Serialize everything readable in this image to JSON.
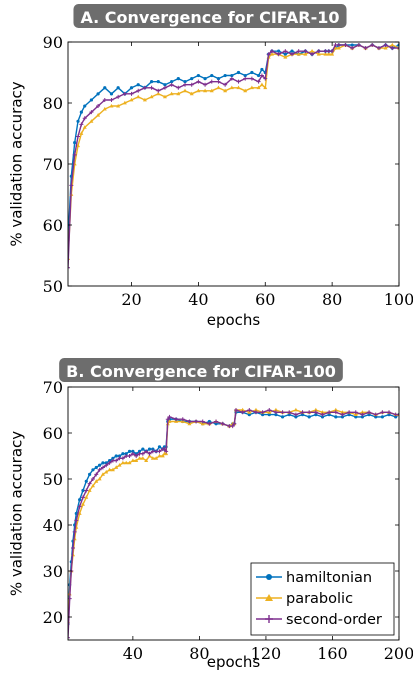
{
  "colors": {
    "hamiltonian": "#0072BD",
    "parabolic": "#EDB120",
    "second_order": "#7E2F8E",
    "title_bg": "#6d6d6d",
    "title_text": "#ffffff"
  },
  "chart_data": [
    {
      "type": "line",
      "title": "A. Convergence for CIFAR-10",
      "xlabel": "epochs",
      "ylabel": "% validation accuracy",
      "xlim": [
        1,
        100
      ],
      "ylim": [
        50,
        90
      ],
      "xticks": [
        20,
        40,
        60,
        80,
        100
      ],
      "yticks": [
        50,
        60,
        70,
        80,
        90
      ],
      "grid": false,
      "legend": "none",
      "series": [
        {
          "name": "hamiltonian",
          "color_key": "hamiltonian",
          "marker": "circle",
          "x": [
            1,
            2,
            3,
            4,
            5,
            6,
            8,
            10,
            12,
            14,
            16,
            18,
            20,
            22,
            24,
            26,
            28,
            30,
            32,
            34,
            36,
            38,
            40,
            42,
            44,
            46,
            48,
            50,
            52,
            54,
            56,
            58,
            59,
            60,
            61,
            62,
            64,
            66,
            68,
            70,
            72,
            74,
            76,
            78,
            79,
            80,
            81,
            82,
            84,
            86,
            88,
            90,
            92,
            94,
            96,
            98,
            100
          ],
          "y": [
            57.5,
            68,
            73.5,
            77,
            78.5,
            79.5,
            80.5,
            81.5,
            82.5,
            81.5,
            82.5,
            81.5,
            82.5,
            83,
            82.5,
            83.5,
            83.5,
            83,
            83.5,
            84,
            83.5,
            84,
            84.5,
            84,
            84.5,
            84,
            84.5,
            84.5,
            85,
            84.5,
            85,
            84.5,
            85.5,
            85,
            88,
            88.5,
            88.5,
            88,
            88.5,
            88,
            88.5,
            88,
            88.5,
            88.5,
            88.5,
            88.5,
            89,
            89.5,
            89.5,
            89.5,
            89.5,
            89,
            89.5,
            89,
            89.5,
            89,
            89.5
          ]
        },
        {
          "name": "parabolic",
          "color_key": "parabolic",
          "marker": "triangle",
          "x": [
            1,
            2,
            3,
            4,
            5,
            6,
            8,
            10,
            12,
            14,
            16,
            18,
            20,
            22,
            24,
            26,
            28,
            30,
            32,
            34,
            36,
            38,
            40,
            42,
            44,
            46,
            48,
            50,
            52,
            54,
            56,
            58,
            59,
            60,
            61,
            62,
            64,
            66,
            68,
            70,
            72,
            74,
            76,
            78,
            79,
            80,
            81,
            82,
            84,
            86,
            88,
            90,
            92,
            94,
            96,
            98,
            100
          ],
          "y": [
            54.5,
            65,
            70,
            73,
            75,
            76,
            77,
            78,
            79,
            79.5,
            79.5,
            80,
            80.5,
            81,
            80.5,
            81,
            81.5,
            81,
            81.5,
            81.5,
            82,
            81.5,
            82,
            82,
            82,
            82.5,
            82,
            82.5,
            82.5,
            82,
            82.5,
            82.5,
            83,
            82.5,
            87.5,
            88,
            88,
            87.5,
            88,
            88,
            88,
            88.5,
            88,
            88,
            88,
            88,
            89,
            89,
            89.5,
            89,
            89.5,
            89,
            89.5,
            89,
            89,
            89.5,
            89
          ]
        },
        {
          "name": "second-order",
          "color_key": "second_order",
          "marker": "plus",
          "x": [
            1,
            2,
            3,
            4,
            5,
            6,
            8,
            10,
            12,
            14,
            16,
            18,
            20,
            22,
            24,
            26,
            28,
            30,
            32,
            34,
            36,
            38,
            40,
            42,
            44,
            46,
            48,
            50,
            52,
            54,
            56,
            58,
            59,
            60,
            61,
            62,
            64,
            66,
            68,
            70,
            72,
            74,
            76,
            78,
            79,
            80,
            81,
            82,
            84,
            86,
            88,
            90,
            92,
            94,
            96,
            98,
            100
          ],
          "y": [
            53,
            66.5,
            71.5,
            74.5,
            76.5,
            77.5,
            78.5,
            79.5,
            80.5,
            80.5,
            81,
            81.5,
            81.5,
            82,
            82.5,
            82.5,
            82,
            82.5,
            83,
            82.5,
            83,
            83,
            83.5,
            83,
            83.5,
            83.5,
            83,
            84,
            83.5,
            84,
            84,
            83.5,
            84.5,
            84,
            88,
            88.5,
            88,
            88.5,
            88,
            88.5,
            88.5,
            88,
            88.5,
            88.5,
            88.5,
            88.5,
            89.5,
            89.5,
            89.5,
            89,
            89.5,
            89,
            89.5,
            89,
            89.5,
            89,
            89
          ]
        }
      ]
    },
    {
      "type": "line",
      "title": "B. Convergence for CIFAR-100",
      "xlabel": "epochs",
      "ylabel": "% validation accuracy",
      "xlim": [
        1,
        200
      ],
      "ylim": [
        15,
        70
      ],
      "xticks": [
        40,
        80,
        120,
        160,
        200
      ],
      "yticks": [
        20,
        30,
        40,
        50,
        60,
        70
      ],
      "grid": false,
      "legend": "bottom-right",
      "series": [
        {
          "name": "hamiltonian",
          "color_key": "hamiltonian",
          "marker": "circle",
          "x": [
            1,
            2,
            3,
            4,
            5,
            6,
            8,
            10,
            12,
            14,
            16,
            18,
            20,
            22,
            24,
            26,
            28,
            30,
            32,
            34,
            36,
            38,
            40,
            42,
            44,
            46,
            48,
            50,
            52,
            54,
            56,
            58,
            59,
            60,
            61,
            62,
            66,
            70,
            74,
            78,
            82,
            86,
            90,
            94,
            98,
            100,
            101,
            102,
            106,
            110,
            114,
            118,
            122,
            126,
            130,
            134,
            138,
            142,
            146,
            150,
            154,
            158,
            162,
            166,
            170,
            174,
            178,
            182,
            186,
            190,
            194,
            198,
            200
          ],
          "y": [
            18.5,
            27,
            32,
            36.5,
            40,
            42.5,
            45.5,
            47.5,
            49.5,
            51,
            52,
            52.5,
            53,
            53.5,
            53.5,
            54,
            54.5,
            55,
            55,
            55.5,
            55.5,
            56,
            56,
            55.5,
            56,
            56.5,
            56,
            56.5,
            56.5,
            56,
            57,
            56.5,
            57,
            57,
            62.5,
            63,
            63,
            62.5,
            62.5,
            62.5,
            62,
            62.5,
            62,
            62,
            61.5,
            62,
            62,
            64.5,
            64.5,
            64,
            64.5,
            64,
            64,
            64,
            63.5,
            64,
            63.5,
            64,
            63.5,
            64,
            63.5,
            64,
            63.5,
            63.5,
            64,
            63.5,
            63.5,
            64,
            63.5,
            63.5,
            64,
            63.5,
            64
          ]
        },
        {
          "name": "parabolic",
          "color_key": "parabolic",
          "marker": "triangle",
          "x": [
            1,
            2,
            3,
            4,
            5,
            6,
            8,
            10,
            12,
            14,
            16,
            18,
            20,
            22,
            24,
            26,
            28,
            30,
            32,
            34,
            36,
            38,
            40,
            42,
            44,
            46,
            48,
            50,
            52,
            54,
            56,
            58,
            59,
            60,
            61,
            62,
            66,
            70,
            74,
            78,
            82,
            86,
            90,
            94,
            98,
            100,
            101,
            102,
            106,
            110,
            114,
            118,
            122,
            126,
            130,
            134,
            138,
            142,
            146,
            150,
            154,
            158,
            162,
            166,
            170,
            174,
            178,
            182,
            186,
            190,
            194,
            198,
            200
          ],
          "y": [
            19,
            25,
            30,
            33.5,
            37,
            39.5,
            42.5,
            44.5,
            46,
            47.5,
            48.5,
            49.5,
            50,
            51,
            51.5,
            52,
            52,
            52.5,
            53,
            53.5,
            53.5,
            53.5,
            54,
            54,
            54.5,
            54.5,
            54,
            55,
            54.5,
            54.5,
            55,
            55,
            55.5,
            55.5,
            62,
            62.5,
            62.5,
            62.5,
            62,
            62.5,
            62,
            62,
            62.5,
            62,
            61.5,
            62,
            62,
            65,
            65,
            64.5,
            65,
            64.5,
            64.5,
            65,
            64.5,
            64.5,
            65,
            64.5,
            64.5,
            65,
            64.5,
            64.5,
            65,
            64.5,
            64.5,
            64,
            64.5,
            64.5,
            64,
            64.5,
            64.5,
            64,
            64
          ]
        },
        {
          "name": "second-order",
          "color_key": "second_order",
          "marker": "plus",
          "x": [
            1,
            2,
            3,
            4,
            5,
            6,
            8,
            10,
            12,
            14,
            16,
            18,
            20,
            22,
            24,
            26,
            28,
            30,
            32,
            34,
            36,
            38,
            40,
            42,
            44,
            46,
            48,
            50,
            52,
            54,
            56,
            58,
            59,
            60,
            61,
            62,
            66,
            70,
            74,
            78,
            82,
            86,
            90,
            94,
            98,
            100,
            101,
            102,
            106,
            110,
            114,
            118,
            122,
            126,
            130,
            134,
            138,
            142,
            146,
            150,
            154,
            158,
            162,
            166,
            170,
            174,
            178,
            182,
            186,
            190,
            194,
            198,
            200
          ],
          "y": [
            15.5,
            24,
            30,
            35,
            38.5,
            41,
            44,
            46,
            47.5,
            49,
            50,
            51,
            52,
            52.5,
            53,
            53.5,
            54,
            54,
            54.5,
            54.5,
            55,
            55,
            55.5,
            55,
            55.5,
            55.5,
            56,
            55.5,
            56,
            56,
            56,
            56.5,
            56.5,
            56,
            63,
            63.5,
            63,
            63,
            62.5,
            62.5,
            62.5,
            62,
            62.5,
            62,
            61.5,
            61.5,
            62,
            65,
            64.5,
            65,
            64.5,
            64.5,
            65,
            64.5,
            64.5,
            64.5,
            64,
            64.5,
            64.5,
            64.5,
            64,
            64.5,
            64.5,
            64,
            64.5,
            64.5,
            64,
            64.5,
            64,
            64.5,
            64.5,
            64,
            64
          ]
        }
      ]
    }
  ]
}
